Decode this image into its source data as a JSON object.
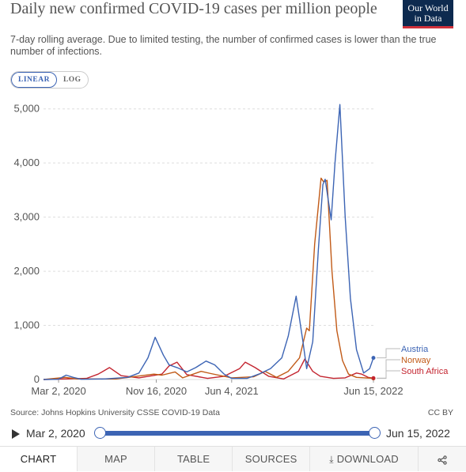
{
  "header": {
    "title": "Daily new confirmed COVID-19 cases per million people",
    "subtitle": "7-day rolling average. Due to limited testing, the number of confirmed cases is lower than the true number of infections.",
    "logo_line1": "Our World",
    "logo_line2": "in Data"
  },
  "scale_toggle": {
    "linear_label": "LINEAR",
    "log_label": "LOG",
    "selected": "LINEAR"
  },
  "chart_data": {
    "type": "line",
    "title": "Daily new confirmed COVID-19 cases per million people",
    "ylim": [
      0,
      5200
    ],
    "xlim": [
      "2020-01-22",
      "2022-06-15"
    ],
    "grid": "horizontal dashed",
    "yticks": [
      0,
      1000,
      2000,
      3000,
      4000,
      5000
    ],
    "ytick_labels": [
      "0",
      "1,000",
      "2,000",
      "3,000",
      "4,000",
      "5,000"
    ],
    "xticks": [
      "2020-03-02",
      "2020-11-16",
      "2021-06-04",
      "2022-06-15"
    ],
    "xtick_labels": [
      "Mar 2, 2020",
      "Nov 16, 2020",
      "Jun 4, 2021",
      "Jun 15, 2022"
    ],
    "legend_position": "right, at line ends",
    "series": [
      {
        "name": "Austria",
        "color": "#3c64b4",
        "points": [
          [
            "2020-01-22",
            0
          ],
          [
            "2020-03-01",
            5
          ],
          [
            "2020-03-22",
            80
          ],
          [
            "2020-04-10",
            40
          ],
          [
            "2020-05-01",
            5
          ],
          [
            "2020-07-01",
            10
          ],
          [
            "2020-09-01",
            40
          ],
          [
            "2020-10-01",
            120
          ],
          [
            "2020-10-25",
            400
          ],
          [
            "2020-11-13",
            780
          ],
          [
            "2020-12-05",
            450
          ],
          [
            "2020-12-20",
            270
          ],
          [
            "2021-01-10",
            220
          ],
          [
            "2021-02-05",
            140
          ],
          [
            "2021-03-01",
            220
          ],
          [
            "2021-03-28",
            340
          ],
          [
            "2021-04-20",
            270
          ],
          [
            "2021-05-15",
            100
          ],
          [
            "2021-06-04",
            20
          ],
          [
            "2021-07-15",
            20
          ],
          [
            "2021-08-15",
            100
          ],
          [
            "2021-09-15",
            200
          ],
          [
            "2021-10-15",
            400
          ],
          [
            "2021-11-01",
            800
          ],
          [
            "2021-11-22",
            1540
          ],
          [
            "2021-12-10",
            700
          ],
          [
            "2021-12-20",
            200
          ],
          [
            "2022-01-05",
            700
          ],
          [
            "2022-01-20",
            2400
          ],
          [
            "2022-02-01",
            3600
          ],
          [
            "2022-02-07",
            3700
          ],
          [
            "2022-02-23",
            2950
          ],
          [
            "2022-03-05",
            4000
          ],
          [
            "2022-03-18",
            5080
          ],
          [
            "2022-04-01",
            3000
          ],
          [
            "2022-04-15",
            1500
          ],
          [
            "2022-05-01",
            550
          ],
          [
            "2022-05-20",
            120
          ],
          [
            "2022-06-05",
            200
          ],
          [
            "2022-06-15",
            400
          ]
        ]
      },
      {
        "name": "Norway",
        "color": "#c15a17",
        "points": [
          [
            "2020-01-22",
            0
          ],
          [
            "2020-03-20",
            40
          ],
          [
            "2020-04-20",
            10
          ],
          [
            "2020-08-01",
            10
          ],
          [
            "2020-11-10",
            100
          ],
          [
            "2020-12-01",
            80
          ],
          [
            "2021-01-05",
            140
          ],
          [
            "2021-01-25",
            30
          ],
          [
            "2021-03-15",
            150
          ],
          [
            "2021-04-10",
            110
          ],
          [
            "2021-06-04",
            30
          ],
          [
            "2021-08-01",
            50
          ],
          [
            "2021-09-01",
            150
          ],
          [
            "2021-10-01",
            40
          ],
          [
            "2021-11-01",
            150
          ],
          [
            "2021-12-01",
            400
          ],
          [
            "2021-12-20",
            950
          ],
          [
            "2021-12-27",
            900
          ],
          [
            "2022-01-10",
            2500
          ],
          [
            "2022-01-27",
            3720
          ],
          [
            "2022-02-03",
            3650
          ],
          [
            "2022-02-12",
            3680
          ],
          [
            "2022-02-25",
            2000
          ],
          [
            "2022-03-10",
            900
          ],
          [
            "2022-03-25",
            350
          ],
          [
            "2022-04-10",
            100
          ],
          [
            "2022-05-01",
            40
          ],
          [
            "2022-06-15",
            20
          ]
        ]
      },
      {
        "name": "South Africa",
        "color": "#c3242f",
        "points": [
          [
            "2020-01-22",
            0
          ],
          [
            "2020-05-15",
            20
          ],
          [
            "2020-06-15",
            100
          ],
          [
            "2020-07-15",
            220
          ],
          [
            "2020-08-15",
            70
          ],
          [
            "2020-10-01",
            30
          ],
          [
            "2020-12-01",
            100
          ],
          [
            "2020-12-20",
            250
          ],
          [
            "2021-01-10",
            320
          ],
          [
            "2021-02-05",
            90
          ],
          [
            "2021-04-01",
            20
          ],
          [
            "2021-05-15",
            60
          ],
          [
            "2021-06-25",
            200
          ],
          [
            "2021-07-10",
            320
          ],
          [
            "2021-08-05",
            220
          ],
          [
            "2021-09-10",
            60
          ],
          [
            "2021-10-20",
            10
          ],
          [
            "2021-11-28",
            150
          ],
          [
            "2021-12-15",
            380
          ],
          [
            "2022-01-05",
            150
          ],
          [
            "2022-01-25",
            60
          ],
          [
            "2022-03-01",
            20
          ],
          [
            "2022-04-01",
            30
          ],
          [
            "2022-05-01",
            120
          ],
          [
            "2022-05-15",
            100
          ],
          [
            "2022-06-01",
            40
          ],
          [
            "2022-06-15",
            25
          ]
        ]
      }
    ]
  },
  "footer": {
    "source": "Source: Johns Hopkins University CSSE COVID-19 Data",
    "license": "CC BY"
  },
  "timeline": {
    "start_label": "Mar 2, 2020",
    "end_label": "Jun 15, 2022"
  },
  "tabs": [
    {
      "label": "CHART",
      "active": true
    },
    {
      "label": "MAP",
      "active": false
    },
    {
      "label": "TABLE",
      "active": false
    },
    {
      "label": "SOURCES",
      "active": false
    },
    {
      "label": "DOWNLOAD",
      "active": false
    }
  ],
  "icons": {
    "download": "download-icon",
    "share": "share-icon",
    "play": "play-icon"
  }
}
